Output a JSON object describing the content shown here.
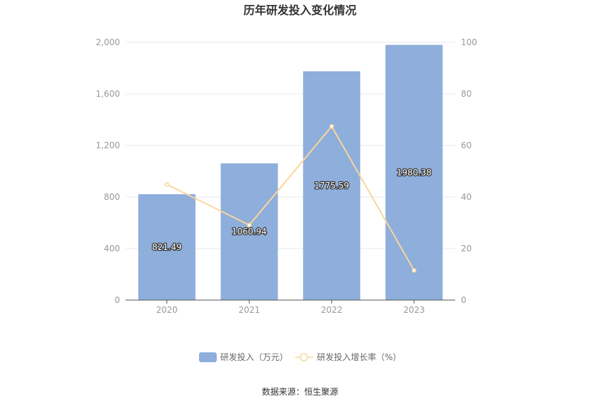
{
  "title": "历年研发投入变化情况",
  "source": "数据来源：恒生聚源",
  "colors": {
    "bar": "#8eaedb",
    "line": "#fad69b",
    "grid": "#e6e9f0",
    "axis": "#555555"
  },
  "chart_data": {
    "type": "bar",
    "title": "历年研发投入变化情况",
    "categories": [
      "2020",
      "2021",
      "2022",
      "2023"
    ],
    "series": [
      {
        "name": "研发投入（万元）",
        "type": "bar",
        "axis": "left",
        "values": [
          821.49,
          1060.94,
          1775.59,
          1980.38
        ],
        "labels": [
          "821.49",
          "1060.94",
          "1775.59",
          "1980.38"
        ]
      },
      {
        "name": "研发投入增长率（%）",
        "type": "line",
        "axis": "right",
        "values": [
          44.9,
          29.1,
          67.4,
          11.5
        ]
      }
    ],
    "y_left": {
      "range": [
        0,
        2000
      ],
      "ticks": [
        0,
        400,
        800,
        1200,
        1600,
        2000
      ],
      "tick_labels": [
        "0",
        "400",
        "800",
        "1,200",
        "1,600",
        "2,000"
      ]
    },
    "y_right": {
      "range": [
        0,
        100
      ],
      "ticks": [
        0,
        20,
        40,
        60,
        80,
        100
      ],
      "tick_labels": [
        "0",
        "20",
        "40",
        "60",
        "80",
        "100"
      ]
    },
    "grid": true,
    "legend_position": "bottom"
  }
}
